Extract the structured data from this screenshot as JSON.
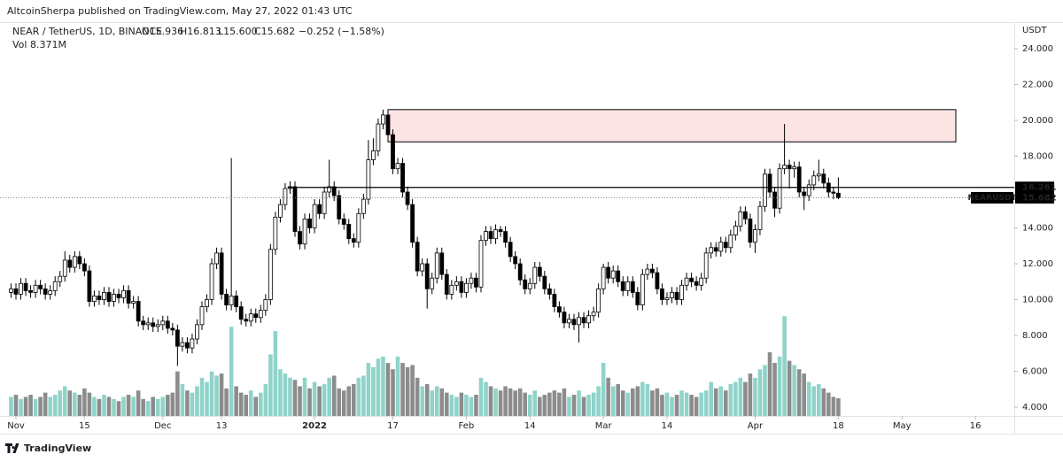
{
  "header": {
    "publisher": "AltcoinSherpa published on TradingView.com, May 27, 2022 01:43 UTC",
    "footer": "TradingView"
  },
  "chart_data": {
    "type": "candlestick",
    "symbol": "NEAR / TetherUS, 1D, BINANCE",
    "legend": {
      "open": "O15.936",
      "high": "H16.813",
      "low": "L15.600",
      "close": "C15.682",
      "change": "−0.252 (−1.58%)"
    },
    "volume_label": "Vol",
    "volume_value": "8.371M",
    "x": [
      0,
      1,
      2,
      3,
      4,
      5,
      6,
      7,
      8,
      9,
      10,
      11,
      12,
      13,
      14,
      15,
      16,
      17,
      18,
      19,
      20,
      21,
      22,
      23,
      24,
      25,
      26,
      27,
      28,
      29,
      30,
      31,
      32,
      33,
      34,
      35,
      36,
      37,
      38,
      39,
      40,
      41,
      42,
      43,
      44,
      45,
      46,
      47,
      48,
      49,
      50,
      51,
      52,
      53,
      54,
      55,
      56,
      57,
      58,
      59,
      60,
      61,
      62,
      63,
      64,
      65,
      66,
      67,
      68,
      69,
      70,
      71,
      72,
      73,
      74,
      75,
      76,
      77,
      78,
      79,
      80,
      81,
      82,
      83,
      84,
      85,
      86,
      87,
      88,
      89,
      90,
      91,
      92,
      93,
      94,
      95,
      96,
      97,
      98,
      99,
      100,
      101,
      102,
      103,
      104,
      105,
      106,
      107,
      108,
      109,
      110,
      111,
      112,
      113,
      114,
      115,
      116,
      117,
      118,
      119,
      120,
      121,
      122,
      123,
      124,
      125,
      126,
      127,
      128,
      129,
      130,
      131,
      132,
      133,
      134,
      135,
      136,
      137,
      138,
      139,
      140,
      141,
      142,
      143,
      144,
      145,
      146,
      147,
      148,
      149,
      150,
      151,
      152,
      153,
      154,
      155,
      156,
      157,
      158,
      159,
      160,
      161,
      162,
      163,
      164,
      165,
      166,
      167,
      168,
      169
    ],
    "open": [
      10.4,
      10.6,
      10.3,
      10.9,
      10.5,
      10.4,
      10.8,
      10.6,
      10.3,
      10.5,
      11.0,
      11.3,
      12.2,
      11.8,
      12.4,
      12.0,
      11.6,
      9.9,
      10.2,
      10.0,
      10.4,
      9.9,
      10.3,
      10.1,
      10.5,
      9.8,
      9.9,
      8.8,
      8.6,
      8.7,
      8.5,
      8.6,
      8.8,
      8.4,
      8.3,
      7.4,
      7.6,
      7.3,
      7.8,
      8.6,
      9.6,
      10.0,
      12.0,
      12.6,
      10.3,
      9.7,
      10.2,
      9.6,
      8.9,
      8.8,
      9.2,
      9.0,
      9.4,
      10.0,
      12.8,
      14.6,
      15.3,
      16.2,
      16.3,
      13.8,
      13.1,
      14.5,
      14.0,
      15.3,
      14.8,
      16.0,
      16.3,
      15.8,
      14.5,
      14.2,
      13.4,
      13.2,
      14.8,
      15.6,
      17.8,
      18.3,
      19.8,
      20.3,
      19.2,
      17.3,
      17.6,
      16.0,
      15.3,
      13.2,
      11.6,
      12.0,
      10.6,
      11.2,
      12.6,
      11.4,
      10.3,
      10.8,
      11.0,
      10.4,
      10.9,
      11.2,
      10.7,
      13.3,
      13.8,
      13.4,
      13.9,
      13.8,
      13.2,
      12.4,
      12.0,
      11.1,
      10.6,
      10.9,
      11.8,
      11.3,
      10.6,
      10.3,
      9.6,
      9.3,
      8.7,
      8.9,
      8.6,
      9.0,
      8.7,
      9.1,
      9.3,
      10.6,
      11.8,
      11.2,
      11.6,
      11.0,
      10.5,
      11.0,
      10.4,
      9.7,
      11.4,
      11.7,
      11.5,
      10.6,
      10.0,
      10.1,
      10.4,
      10.0,
      10.8,
      11.2,
      11.0,
      10.8,
      11.2,
      12.6,
      12.9,
      12.7,
      13.2,
      12.9,
      13.6,
      14.1,
      14.9,
      14.5,
      13.2,
      13.9,
      15.2,
      17.0,
      16.0,
      15.1,
      17.3,
      17.5,
      17.3,
      17.4,
      16.0,
      15.8,
      16.4,
      16.9,
      17.0,
      16.5,
      16.0,
      15.936
    ],
    "high": [
      10.9,
      10.9,
      11.2,
      11.2,
      10.8,
      11.1,
      11.1,
      10.9,
      10.8,
      11.3,
      11.6,
      12.7,
      12.5,
      12.7,
      12.7,
      12.3,
      11.9,
      10.5,
      10.5,
      10.7,
      10.7,
      10.6,
      10.6,
      10.8,
      10.8,
      10.2,
      10.2,
      9.1,
      9.0,
      9.0,
      8.9,
      9.1,
      9.1,
      8.7,
      8.6,
      7.9,
      7.9,
      8.1,
      8.9,
      9.9,
      10.3,
      12.3,
      12.9,
      12.9,
      10.6,
      17.9,
      10.5,
      9.9,
      9.2,
      9.5,
      9.5,
      9.7,
      10.3,
      13.1,
      14.9,
      15.6,
      16.5,
      16.6,
      16.6,
      14.1,
      14.8,
      14.8,
      15.6,
      15.6,
      16.3,
      17.8,
      16.6,
      16.1,
      14.8,
      14.5,
      13.7,
      15.1,
      15.9,
      18.9,
      19.0,
      20.1,
      20.6,
      20.5,
      19.5,
      17.9,
      17.9,
      16.3,
      15.6,
      13.5,
      12.3,
      12.3,
      11.5,
      12.9,
      12.9,
      11.7,
      11.1,
      11.3,
      11.3,
      11.2,
      11.5,
      11.5,
      13.6,
      14.1,
      14.1,
      14.2,
      14.1,
      14.1,
      13.5,
      12.7,
      12.3,
      11.4,
      11.2,
      12.1,
      12.1,
      11.6,
      10.9,
      10.6,
      9.9,
      9.6,
      9.2,
      9.2,
      9.3,
      9.3,
      9.4,
      9.6,
      10.9,
      12.0,
      12.1,
      11.9,
      11.9,
      11.3,
      11.3,
      11.3,
      10.7,
      11.7,
      12.0,
      12.0,
      11.8,
      10.9,
      10.4,
      10.7,
      10.7,
      11.1,
      11.5,
      11.5,
      11.3,
      11.5,
      12.9,
      13.2,
      13.2,
      13.5,
      13.5,
      13.9,
      14.4,
      15.2,
      15.2,
      14.8,
      14.2,
      15.5,
      17.3,
      17.3,
      16.3,
      17.6,
      19.8,
      17.8,
      17.7,
      17.7,
      16.3,
      16.7,
      17.2,
      17.8,
      17.3,
      16.8,
      16.3,
      16.813
    ],
    "low": [
      10.1,
      10.0,
      10.0,
      10.2,
      10.1,
      10.1,
      10.3,
      10.0,
      10.0,
      10.2,
      10.7,
      11.0,
      11.5,
      11.5,
      11.7,
      11.3,
      9.6,
      9.6,
      9.7,
      9.7,
      9.6,
      9.6,
      9.8,
      9.8,
      9.5,
      9.5,
      8.5,
      8.3,
      8.3,
      8.2,
      8.2,
      8.3,
      8.1,
      8.0,
      6.3,
      7.1,
      7.0,
      7.0,
      7.5,
      8.3,
      9.3,
      9.7,
      11.7,
      10.0,
      9.4,
      9.4,
      9.3,
      8.6,
      8.5,
      8.5,
      8.7,
      8.7,
      9.1,
      9.7,
      12.5,
      14.3,
      15.0,
      15.9,
      13.5,
      12.8,
      12.8,
      13.7,
      13.7,
      14.5,
      14.5,
      15.7,
      15.5,
      14.2,
      13.9,
      13.1,
      12.9,
      12.9,
      14.5,
      15.3,
      17.5,
      18.0,
      19.5,
      18.9,
      17.0,
      17.0,
      15.7,
      15.0,
      12.9,
      11.3,
      11.3,
      9.5,
      10.3,
      10.9,
      11.1,
      10.0,
      10.0,
      10.5,
      10.1,
      10.1,
      10.6,
      10.4,
      10.4,
      13.0,
      13.1,
      13.1,
      13.5,
      12.9,
      12.1,
      11.7,
      10.8,
      10.3,
      10.3,
      10.6,
      11.0,
      10.3,
      10.0,
      9.3,
      9.0,
      8.4,
      8.4,
      8.3,
      7.6,
      8.4,
      8.4,
      8.8,
      9.0,
      10.3,
      10.9,
      10.9,
      10.7,
      10.2,
      10.2,
      10.1,
      9.4,
      9.4,
      11.1,
      11.2,
      10.3,
      9.7,
      9.7,
      9.8,
      9.7,
      9.7,
      10.5,
      10.7,
      10.5,
      10.5,
      10.9,
      12.3,
      12.4,
      12.4,
      12.6,
      12.6,
      13.3,
      13.8,
      14.2,
      12.9,
      12.6,
      13.6,
      14.9,
      15.7,
      14.6,
      14.8,
      17.0,
      16.2,
      16.8,
      15.7,
      15.0,
      15.5,
      16.1,
      16.6,
      16.2,
      15.7,
      15.6,
      15.6
    ],
    "close": [
      10.6,
      10.3,
      10.9,
      10.5,
      10.4,
      10.8,
      10.6,
      10.3,
      10.5,
      11.0,
      11.3,
      12.2,
      11.8,
      12.4,
      12.0,
      11.6,
      9.9,
      10.2,
      10.0,
      10.4,
      9.9,
      10.3,
      10.1,
      10.5,
      9.8,
      9.9,
      8.8,
      8.6,
      8.7,
      8.5,
      8.6,
      8.8,
      8.4,
      8.3,
      7.4,
      7.6,
      7.3,
      7.8,
      8.6,
      9.6,
      10.0,
      12.0,
      12.6,
      10.3,
      9.7,
      10.2,
      9.6,
      8.9,
      8.8,
      9.2,
      9.0,
      9.4,
      10.0,
      12.8,
      14.6,
      15.3,
      16.2,
      16.3,
      13.8,
      13.1,
      14.5,
      14.0,
      15.3,
      14.8,
      16.0,
      16.3,
      15.8,
      14.5,
      14.2,
      13.4,
      13.2,
      14.8,
      15.6,
      17.8,
      18.3,
      19.8,
      20.3,
      19.2,
      17.3,
      17.6,
      16.0,
      15.3,
      13.2,
      11.6,
      12.0,
      10.6,
      11.2,
      12.6,
      11.4,
      10.3,
      10.8,
      11.0,
      10.4,
      10.9,
      11.2,
      10.7,
      13.3,
      13.8,
      13.4,
      13.9,
      13.8,
      13.2,
      12.4,
      12.0,
      11.1,
      10.6,
      10.9,
      11.8,
      11.3,
      10.6,
      10.3,
      9.6,
      9.3,
      8.7,
      8.9,
      8.6,
      9.0,
      8.7,
      9.1,
      9.3,
      10.6,
      11.8,
      11.2,
      11.6,
      11.0,
      10.5,
      11.0,
      10.4,
      9.7,
      11.4,
      11.7,
      11.5,
      10.6,
      10.0,
      10.1,
      10.4,
      10.0,
      10.8,
      11.2,
      11.0,
      10.8,
      11.2,
      12.6,
      12.9,
      12.7,
      13.2,
      12.9,
      13.6,
      14.1,
      14.9,
      14.5,
      13.2,
      13.9,
      15.2,
      17.0,
      16.0,
      15.1,
      17.3,
      17.5,
      17.3,
      17.4,
      16.0,
      15.8,
      16.4,
      16.9,
      17.0,
      16.5,
      16.0,
      15.934,
      15.682
    ],
    "volume": [
      9,
      10,
      8,
      9,
      10,
      8,
      9,
      11,
      9,
      10,
      12,
      14,
      12,
      11,
      10,
      13,
      11,
      9,
      8,
      10,
      9,
      8,
      7,
      9,
      10,
      9,
      12,
      8,
      7,
      9,
      8,
      9,
      10,
      11,
      21,
      15,
      12,
      11,
      14,
      18,
      16,
      21,
      19,
      20,
      13,
      42,
      14,
      11,
      10,
      12,
      9,
      11,
      15,
      29,
      40,
      22,
      20,
      18,
      17,
      14,
      18,
      13,
      16,
      14,
      15,
      18,
      19,
      13,
      12,
      14,
      15,
      18,
      19,
      25,
      23,
      27,
      28,
      25,
      22,
      28,
      25,
      23,
      24,
      18,
      14,
      15,
      12,
      14,
      13,
      11,
      10,
      9,
      11,
      10,
      9,
      10,
      18,
      16,
      14,
      13,
      12,
      14,
      13,
      12,
      13,
      11,
      10,
      12,
      9,
      10,
      11,
      12,
      11,
      13,
      9,
      10,
      12,
      9,
      10,
      11,
      14,
      25,
      18,
      14,
      15,
      12,
      11,
      13,
      14,
      16,
      15,
      12,
      13,
      10,
      11,
      9,
      10,
      12,
      11,
      10,
      9,
      11,
      12,
      16,
      13,
      14,
      12,
      15,
      16,
      18,
      16,
      20,
      18,
      22,
      24,
      30,
      25,
      28,
      47,
      26,
      24,
      22,
      20,
      16,
      14,
      15,
      13,
      11,
      9,
      8.371
    ],
    "up_color": "#ffffff",
    "down_color": "#000000",
    "volume_up_color": "#8fd3c9",
    "volume_down_color": "#8c8c8c",
    "xlim": [
      -2.257,
      204.94
    ],
    "xticks": [
      {
        "value": 1,
        "label": "Nov"
      },
      {
        "value": 15,
        "label": "15"
      },
      {
        "value": 31,
        "label": "Dec"
      },
      {
        "value": 43,
        "label": "13"
      },
      {
        "value": 62,
        "label": "2022",
        "bold": true
      },
      {
        "value": 78,
        "label": "17"
      },
      {
        "value": 93,
        "label": "Feb"
      },
      {
        "value": 106,
        "label": "14"
      },
      {
        "value": 121,
        "label": "Mar"
      },
      {
        "value": 134,
        "label": "14"
      },
      {
        "value": 152,
        "label": "Apr"
      },
      {
        "value": 169,
        "label": "18"
      },
      {
        "value": 182,
        "label": "May"
      },
      {
        "value": 197,
        "label": "16"
      }
    ],
    "ylim": [
      3.506,
      26.716
    ],
    "y_unit": "USDT",
    "yticks": [
      {
        "value": 24,
        "label": "24.000"
      },
      {
        "value": 22,
        "label": "22.000"
      },
      {
        "value": 20,
        "label": "20.000"
      },
      {
        "value": 18,
        "label": "18.000"
      },
      {
        "value": 14,
        "label": "14.000"
      },
      {
        "value": 12,
        "label": "12.000"
      },
      {
        "value": 10,
        "label": "10.000"
      },
      {
        "value": 8,
        "label": "8.000"
      },
      {
        "value": 6,
        "label": "6.000"
      },
      {
        "value": 4,
        "label": "4.000"
      }
    ],
    "y2lim": [
      0,
      196
    ],
    "level": {
      "value": 16.261,
      "from": 56.5
    },
    "zone": {
      "x": [
        77,
        193
      ],
      "y": [
        18.8,
        20.6
      ],
      "color": "#fde4e4"
    },
    "last_price": {
      "label": "NEARUSDT"
    }
  }
}
